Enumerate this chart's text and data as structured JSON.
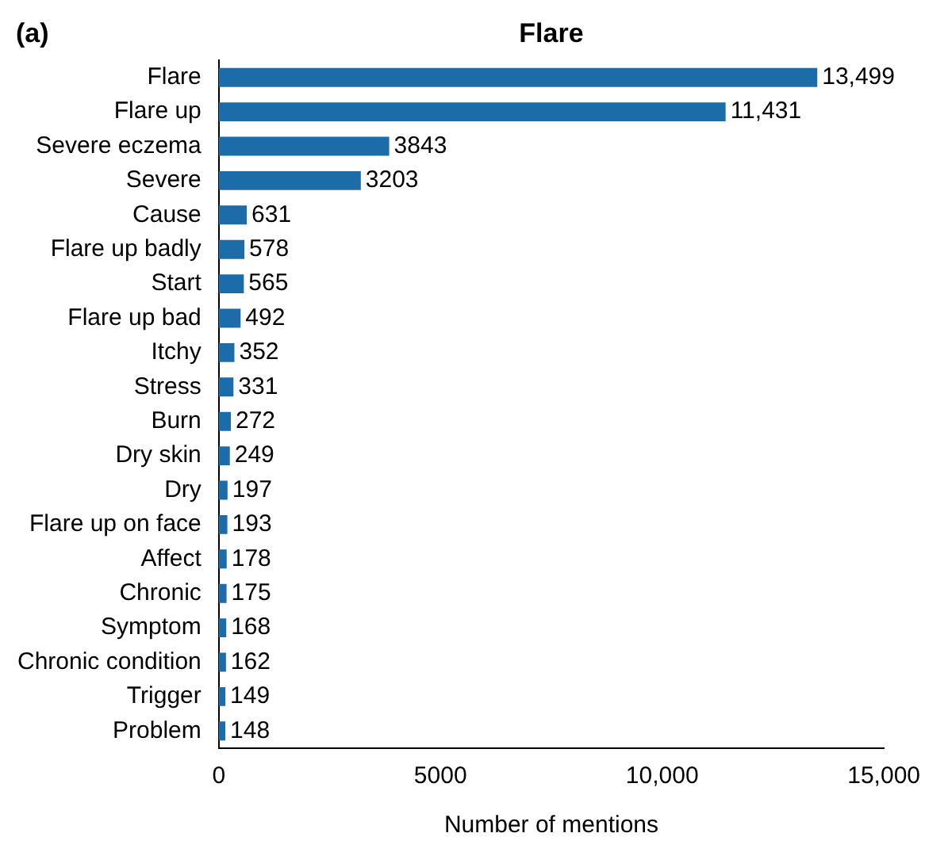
{
  "chart_data": {
    "type": "bar",
    "orientation": "horizontal",
    "title": "Flare",
    "xlabel": "Number of mentions",
    "annotations": [
      "(a)"
    ],
    "categories": [
      "Flare",
      "Flare up",
      "Severe eczema",
      "Severe",
      "Cause",
      "Flare up badly",
      "Start",
      "Flare up bad",
      "Itchy",
      "Stress",
      "Burn",
      "Dry skin",
      "Dry",
      "Flare up on face",
      "Affect",
      "Chronic",
      "Symptom",
      "Chronic condition",
      "Trigger",
      "Problem"
    ],
    "values": [
      13499,
      11431,
      3843,
      3203,
      631,
      578,
      565,
      492,
      352,
      331,
      272,
      249,
      197,
      193,
      178,
      175,
      168,
      162,
      149,
      148
    ],
    "value_labels": [
      "13,499",
      "11,431",
      "3843",
      "3203",
      "631",
      "578",
      "565",
      "492",
      "352",
      "331",
      "272",
      "249",
      "197",
      "193",
      "178",
      "175",
      "168",
      "162",
      "149",
      "148"
    ],
    "color": "#1b6ca8",
    "xlim": [
      0,
      15000
    ],
    "xticks": [
      0,
      5000,
      {
        "value": 10000,
        "label": "10,000"
      },
      {
        "value": 15000,
        "label": "15,000"
      }
    ],
    "grid": false,
    "legend": false
  }
}
